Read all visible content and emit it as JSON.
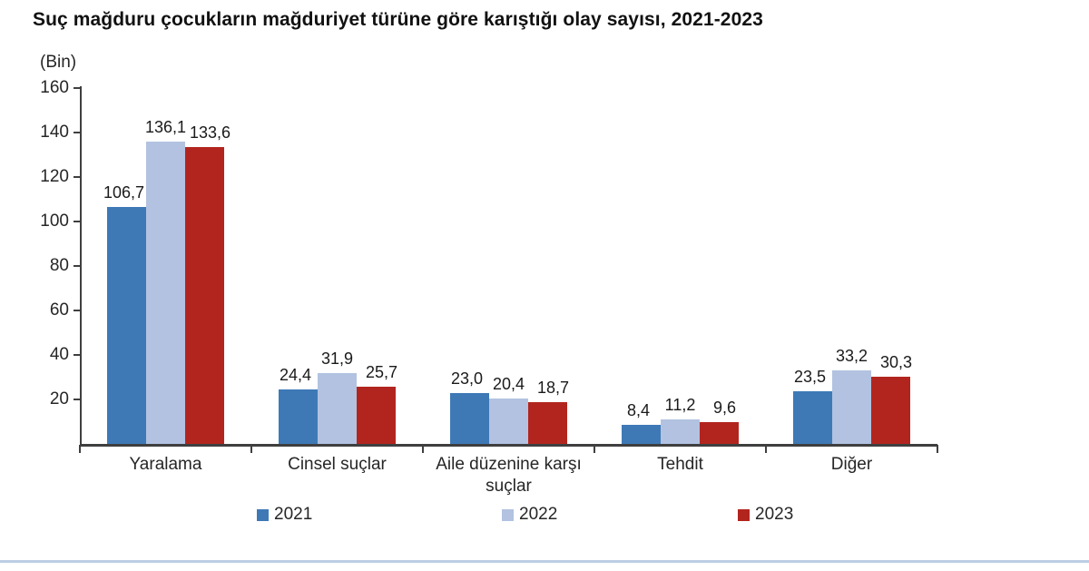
{
  "chart_data": {
    "type": "bar",
    "title": "Suç mağduru çocukların mağduriyet türüne göre karıştığı olay sayısı, 2021-2023",
    "unit_label": "(Bin)",
    "categories": [
      "Yaralama",
      "Cinsel suçlar",
      "Aile düzenine karşı suçlar",
      "Tehdit",
      "Diğer"
    ],
    "series": [
      {
        "name": "2021",
        "color": "#3e79b6",
        "values": [
          106.7,
          24.4,
          23.0,
          8.4,
          23.5
        ]
      },
      {
        "name": "2022",
        "color": "#b2c2e0",
        "values": [
          136.1,
          31.9,
          20.4,
          11.2,
          33.2
        ]
      },
      {
        "name": "2023",
        "color": "#b2251e",
        "values": [
          133.6,
          25.7,
          18.7,
          9.6,
          30.3
        ]
      }
    ],
    "value_labels": [
      [
        "106,7",
        "24,4",
        "23,0",
        "8,4",
        "23,5"
      ],
      [
        "136,1",
        "31,9",
        "20,4",
        "11,2",
        "33,2"
      ],
      [
        "133,6",
        "25,7",
        "18,7",
        "9,6",
        "30,3"
      ]
    ],
    "xlabel": "",
    "ylabel": "(Bin)",
    "ylim": [
      0,
      160
    ],
    "y_ticks": [
      20,
      40,
      60,
      80,
      100,
      120,
      140,
      160
    ],
    "grid": false,
    "legend_position": "bottom",
    "decimal_separator": ","
  },
  "colors": {
    "axis": "#3f3f3f",
    "text": "#262626",
    "title_text": "#111111",
    "bottom_divider": "#bccde3",
    "background": "#ffffff"
  }
}
